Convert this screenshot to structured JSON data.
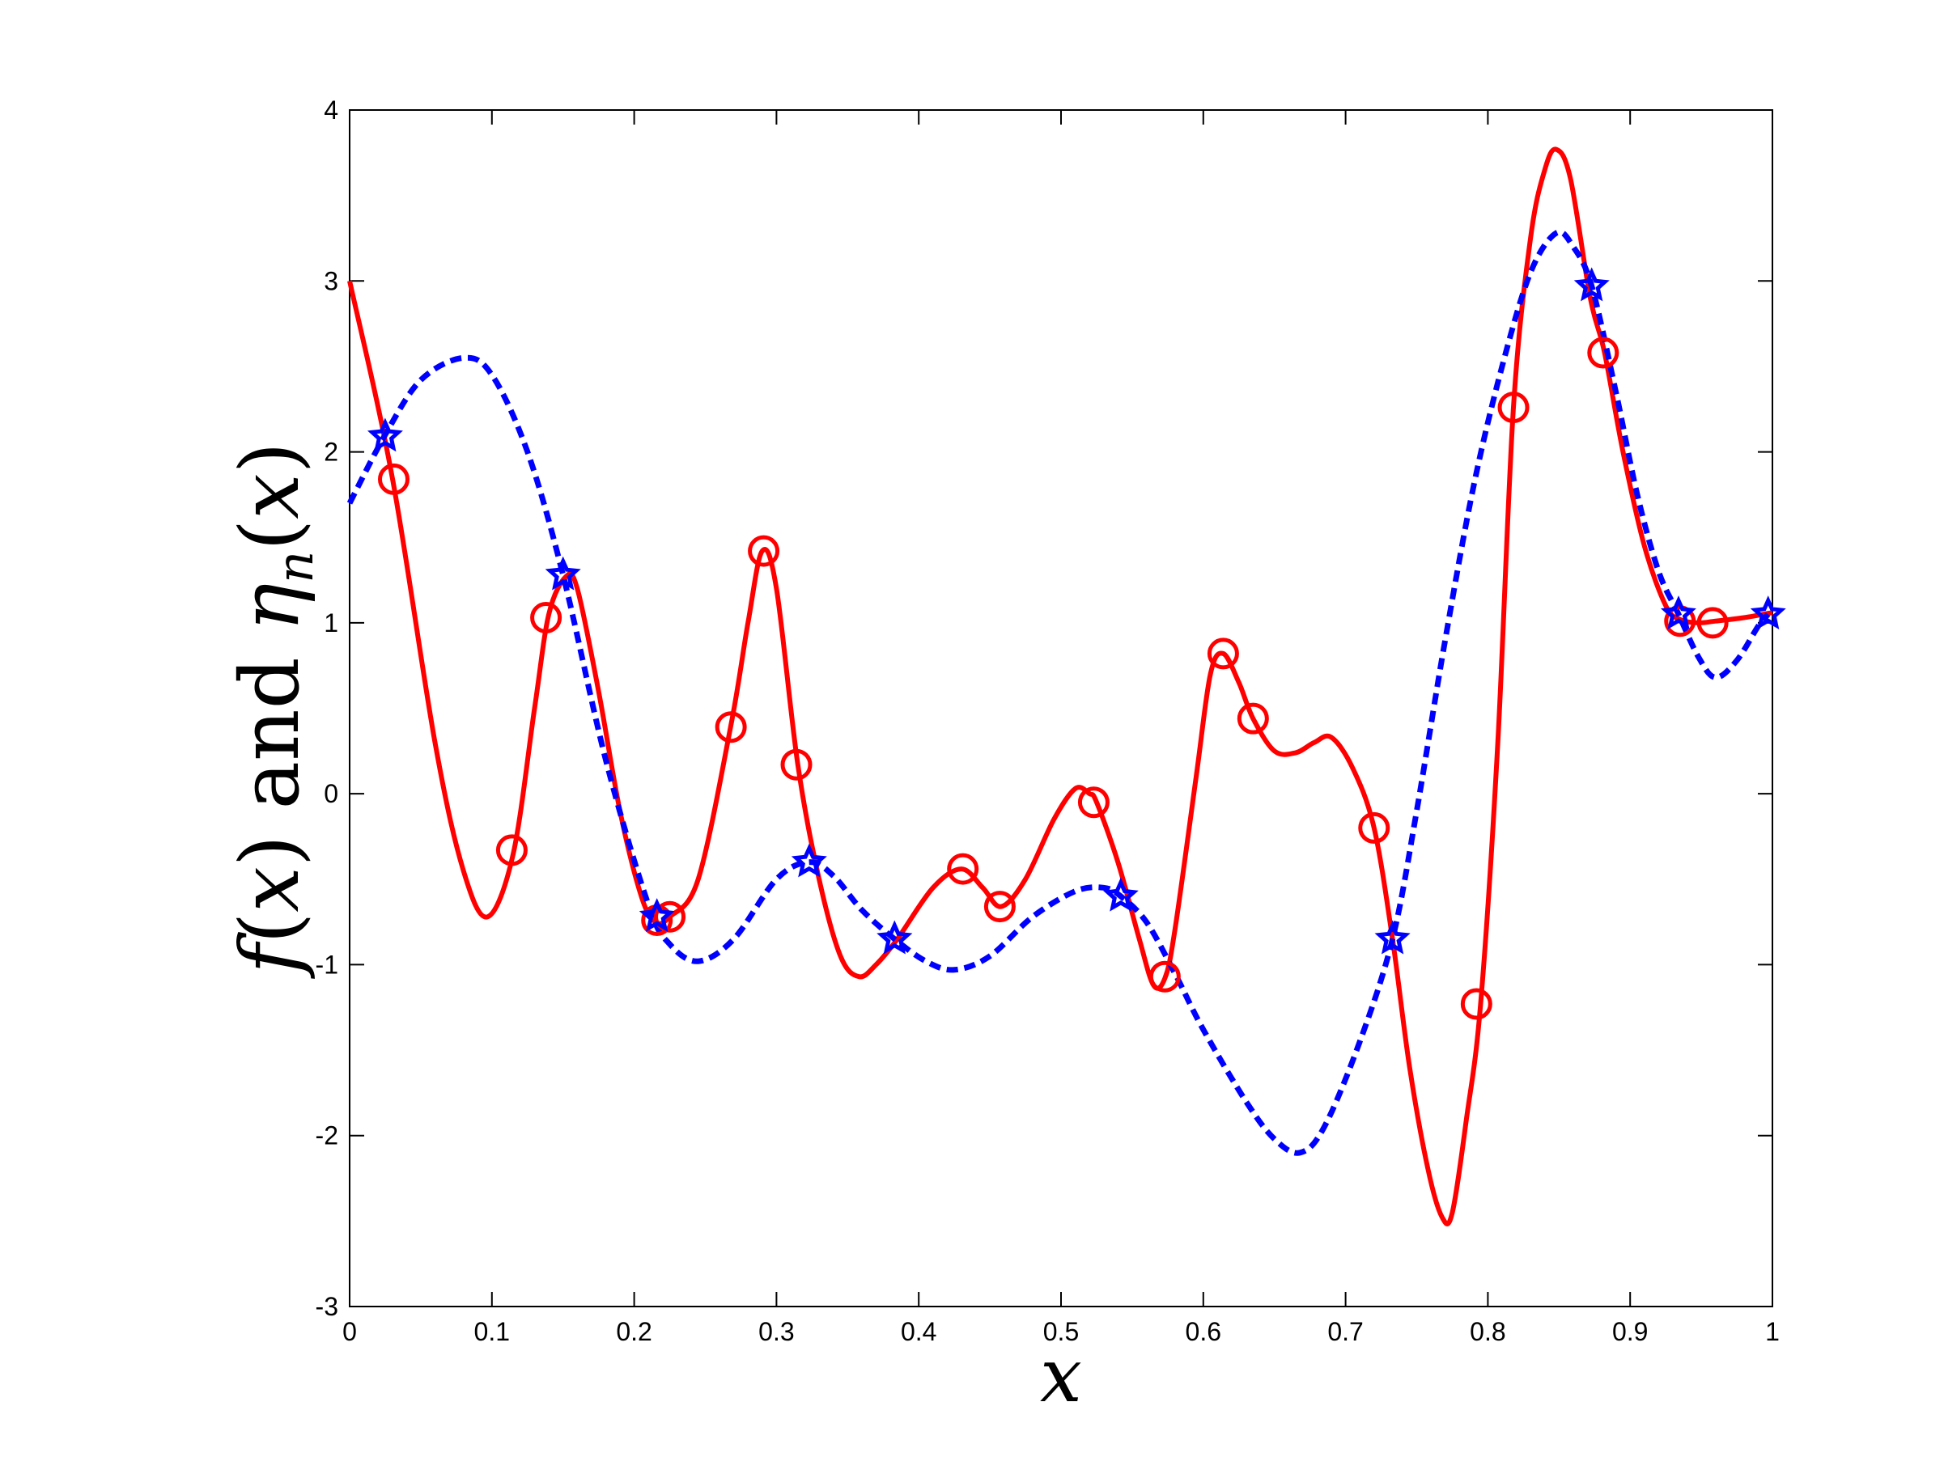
{
  "chart_data": {
    "type": "line",
    "xlabel": "x",
    "ylabel": {
      "parts": [
        "f",
        "(",
        "x",
        ")",
        " and ",
        "η",
        "n",
        "(",
        "x",
        ")"
      ]
    },
    "xlim": [
      0,
      1
    ],
    "ylim": [
      -3,
      4
    ],
    "xticks": [
      "0",
      "0.1",
      "0.2",
      "0.3",
      "0.4",
      "0.5",
      "0.6",
      "0.7",
      "0.8",
      "0.9",
      "1"
    ],
    "yticks": [
      "-3",
      "-2",
      "-1",
      "0",
      "1",
      "2",
      "3",
      "4"
    ],
    "xtick_values": [
      0,
      0.1,
      0.2,
      0.3,
      0.4,
      0.5,
      0.6,
      0.7,
      0.8,
      0.9,
      1
    ],
    "ytick_values": [
      -3,
      -2,
      -1,
      0,
      1,
      2,
      3,
      4
    ],
    "grid": false,
    "legend": "none",
    "series": [
      {
        "style": "solid",
        "color": "#ff0000",
        "curve": [
          [
            0.0,
            3.0
          ],
          [
            0.03,
            1.85
          ],
          [
            0.06,
            0.3
          ],
          [
            0.08,
            -0.45
          ],
          [
            0.097,
            -0.72
          ],
          [
            0.115,
            -0.35
          ],
          [
            0.13,
            0.5
          ],
          [
            0.14,
            1.05
          ],
          [
            0.152,
            1.27
          ],
          [
            0.16,
            1.2
          ],
          [
            0.175,
            0.6
          ],
          [
            0.19,
            -0.1
          ],
          [
            0.205,
            -0.6
          ],
          [
            0.215,
            -0.75
          ],
          [
            0.225,
            -0.72
          ],
          [
            0.245,
            -0.5
          ],
          [
            0.268,
            0.4
          ],
          [
            0.28,
            1.0
          ],
          [
            0.29,
            1.42
          ],
          [
            0.3,
            1.2
          ],
          [
            0.315,
            0.17
          ],
          [
            0.33,
            -0.5
          ],
          [
            0.345,
            -0.95
          ],
          [
            0.358,
            -1.07
          ],
          [
            0.37,
            -1.0
          ],
          [
            0.385,
            -0.85
          ],
          [
            0.41,
            -0.55
          ],
          [
            0.43,
            -0.44
          ],
          [
            0.445,
            -0.55
          ],
          [
            0.458,
            -0.66
          ],
          [
            0.475,
            -0.5
          ],
          [
            0.495,
            -0.15
          ],
          [
            0.51,
            0.03
          ],
          [
            0.52,
            0.0
          ],
          [
            0.525,
            -0.05
          ],
          [
            0.54,
            -0.4
          ],
          [
            0.555,
            -0.85
          ],
          [
            0.565,
            -1.12
          ],
          [
            0.573,
            -1.08
          ],
          [
            0.58,
            -0.8
          ],
          [
            0.595,
            0.1
          ],
          [
            0.605,
            0.7
          ],
          [
            0.614,
            0.82
          ],
          [
            0.625,
            0.65
          ],
          [
            0.635,
            0.44
          ],
          [
            0.65,
            0.25
          ],
          [
            0.665,
            0.24
          ],
          [
            0.678,
            0.3
          ],
          [
            0.69,
            0.33
          ],
          [
            0.705,
            0.15
          ],
          [
            0.72,
            -0.2
          ],
          [
            0.733,
            -0.85
          ],
          [
            0.745,
            -1.6
          ],
          [
            0.758,
            -2.2
          ],
          [
            0.768,
            -2.48
          ],
          [
            0.775,
            -2.45
          ],
          [
            0.785,
            -1.9
          ],
          [
            0.795,
            -1.22
          ],
          [
            0.807,
            0.3
          ],
          [
            0.818,
            2.26
          ],
          [
            0.83,
            3.25
          ],
          [
            0.84,
            3.65
          ],
          [
            0.848,
            3.77
          ],
          [
            0.858,
            3.6
          ],
          [
            0.872,
            2.9
          ],
          [
            0.882,
            2.58
          ],
          [
            0.895,
            2.0
          ],
          [
            0.91,
            1.45
          ],
          [
            0.925,
            1.1
          ],
          [
            0.935,
            1.02
          ],
          [
            0.948,
            1.0
          ],
          [
            0.96,
            1.01
          ],
          [
            0.98,
            1.03
          ],
          [
            1.0,
            1.06
          ]
        ],
        "markers": {
          "shape": "circle",
          "points": [
            [
              0.031,
              1.84
            ],
            [
              0.114,
              -0.33
            ],
            [
              0.138,
              1.03
            ],
            [
              0.216,
              -0.74
            ],
            [
              0.225,
              -0.72
            ],
            [
              0.268,
              0.39
            ],
            [
              0.291,
              1.42
            ],
            [
              0.314,
              0.17
            ],
            [
              0.431,
              -0.44
            ],
            [
              0.457,
              -0.66
            ],
            [
              0.523,
              -0.05
            ],
            [
              0.573,
              -1.07
            ],
            [
              0.614,
              0.82
            ],
            [
              0.635,
              0.44
            ],
            [
              0.72,
              -0.2
            ],
            [
              0.792,
              -1.23
            ],
            [
              0.818,
              2.26
            ],
            [
              0.881,
              2.58
            ],
            [
              0.935,
              1.01
            ],
            [
              0.958,
              1.0
            ]
          ]
        }
      },
      {
        "style": "dashed",
        "color": "#0000ff",
        "curve": [
          [
            0.0,
            1.7
          ],
          [
            0.025,
            2.1
          ],
          [
            0.05,
            2.42
          ],
          [
            0.08,
            2.55
          ],
          [
            0.1,
            2.45
          ],
          [
            0.125,
            2.0
          ],
          [
            0.15,
            1.28
          ],
          [
            0.18,
            0.2
          ],
          [
            0.21,
            -0.65
          ],
          [
            0.225,
            -0.88
          ],
          [
            0.245,
            -0.98
          ],
          [
            0.27,
            -0.85
          ],
          [
            0.3,
            -0.5
          ],
          [
            0.323,
            -0.4
          ],
          [
            0.34,
            -0.48
          ],
          [
            0.36,
            -0.68
          ],
          [
            0.383,
            -0.85
          ],
          [
            0.405,
            -0.98
          ],
          [
            0.425,
            -1.03
          ],
          [
            0.45,
            -0.95
          ],
          [
            0.48,
            -0.72
          ],
          [
            0.51,
            -0.57
          ],
          [
            0.53,
            -0.55
          ],
          [
            0.542,
            -0.6
          ],
          [
            0.56,
            -0.75
          ],
          [
            0.58,
            -1.05
          ],
          [
            0.6,
            -1.38
          ],
          [
            0.63,
            -1.8
          ],
          [
            0.65,
            -2.02
          ],
          [
            0.668,
            -2.1
          ],
          [
            0.685,
            -1.95
          ],
          [
            0.71,
            -1.45
          ],
          [
            0.733,
            -0.85
          ],
          [
            0.75,
            -0.1
          ],
          [
            0.77,
            0.9
          ],
          [
            0.79,
            1.8
          ],
          [
            0.81,
            2.5
          ],
          [
            0.83,
            3.05
          ],
          [
            0.848,
            3.28
          ],
          [
            0.86,
            3.2
          ],
          [
            0.873,
            2.97
          ],
          [
            0.89,
            2.35
          ],
          [
            0.905,
            1.75
          ],
          [
            0.92,
            1.3
          ],
          [
            0.934,
            1.05
          ],
          [
            0.948,
            0.8
          ],
          [
            0.96,
            0.68
          ],
          [
            0.975,
            0.78
          ],
          [
            0.99,
            0.98
          ],
          [
            0.997,
            1.05
          ]
        ],
        "markers": {
          "shape": "star",
          "points": [
            [
              0.025,
              2.09
            ],
            [
              0.15,
              1.28
            ],
            [
              0.216,
              -0.72
            ],
            [
              0.323,
              -0.4
            ],
            [
              0.383,
              -0.85
            ],
            [
              0.542,
              -0.6
            ],
            [
              0.733,
              -0.85
            ],
            [
              0.873,
              2.97
            ],
            [
              0.934,
              1.05
            ],
            [
              0.997,
              1.05
            ]
          ]
        }
      }
    ]
  }
}
